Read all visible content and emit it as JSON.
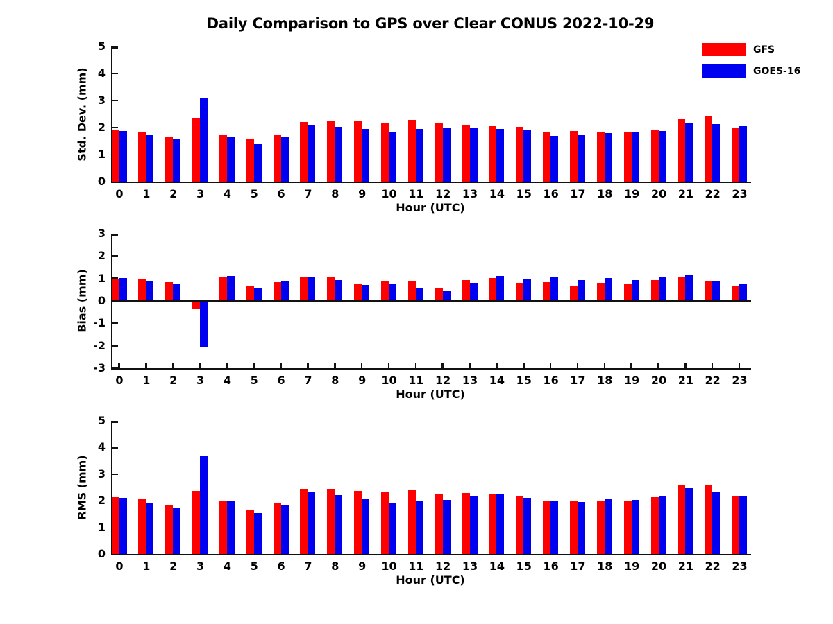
{
  "figure": {
    "title": "Daily Comparison to GPS over Clear CONUS 2022-10-29",
    "background": "#ffffff",
    "axis_color": "#111111"
  },
  "legend": {
    "position": "top-right",
    "items": [
      {
        "label": "GFS",
        "color": "#ff0000"
      },
      {
        "label": "GOES-16",
        "color": "#0000f0"
      }
    ]
  },
  "chart_data": [
    {
      "type": "bar",
      "title": "",
      "ylabel": "Std. Dev. (mm)",
      "xlabel": "Hour (UTC)",
      "ylim": [
        0,
        5
      ],
      "yticks": [
        0,
        1,
        2,
        3,
        4,
        5
      ],
      "grid": false,
      "zero_line": false,
      "x": [
        0,
        1,
        2,
        3,
        4,
        5,
        6,
        7,
        8,
        9,
        10,
        11,
        12,
        13,
        14,
        15,
        16,
        17,
        18,
        19,
        20,
        21,
        22,
        23
      ],
      "series": [
        {
          "name": "GFS",
          "color": "#ff0000",
          "values": [
            1.9,
            1.84,
            1.65,
            2.37,
            1.71,
            1.56,
            1.73,
            2.21,
            2.22,
            2.25,
            2.16,
            2.27,
            2.18,
            2.1,
            2.06,
            2.03,
            1.82,
            1.87,
            1.85,
            1.83,
            1.93,
            2.34,
            2.4,
            2.01
          ]
        },
        {
          "name": "GOES-16",
          "color": "#0000f0",
          "values": [
            1.86,
            1.71,
            1.56,
            3.1,
            1.66,
            1.4,
            1.66,
            2.08,
            2.03,
            1.95,
            1.84,
            1.94,
            2.0,
            1.98,
            1.96,
            1.9,
            1.68,
            1.73,
            1.79,
            1.84,
            1.88,
            2.19,
            2.12,
            2.04
          ]
        }
      ]
    },
    {
      "type": "bar",
      "title": "",
      "ylabel": "Bias (mm)",
      "xlabel": "Hour (UTC)",
      "ylim": [
        -3,
        3
      ],
      "yticks": [
        -3,
        -2,
        -1,
        0,
        1,
        2,
        3
      ],
      "grid": false,
      "zero_line": true,
      "x": [
        0,
        1,
        2,
        3,
        4,
        5,
        6,
        7,
        8,
        9,
        10,
        11,
        12,
        13,
        14,
        15,
        16,
        17,
        18,
        19,
        20,
        21,
        22,
        23
      ],
      "series": [
        {
          "name": "GFS",
          "color": "#ff0000",
          "values": [
            0.98,
            0.95,
            0.85,
            -0.33,
            1.08,
            0.65,
            0.85,
            1.08,
            1.07,
            0.77,
            0.89,
            0.88,
            0.6,
            0.93,
            1.02,
            0.8,
            0.83,
            0.66,
            0.79,
            0.78,
            0.93,
            1.07,
            0.9,
            0.69
          ]
        },
        {
          "name": "GOES-16",
          "color": "#0000f0",
          "values": [
            1.01,
            0.9,
            0.78,
            -2.05,
            1.11,
            0.6,
            0.87,
            1.05,
            0.94,
            0.7,
            0.73,
            0.6,
            0.42,
            0.81,
            1.12,
            0.96,
            1.08,
            0.94,
            1.02,
            0.93,
            1.09,
            1.17,
            0.9,
            0.76
          ]
        }
      ]
    },
    {
      "type": "bar",
      "title": "",
      "ylabel": "RMS (mm)",
      "xlabel": "Hour (UTC)",
      "ylim": [
        0,
        5
      ],
      "yticks": [
        0,
        1,
        2,
        3,
        4,
        5
      ],
      "grid": false,
      "zero_line": false,
      "x": [
        0,
        1,
        2,
        3,
        4,
        5,
        6,
        7,
        8,
        9,
        10,
        11,
        12,
        13,
        14,
        15,
        16,
        17,
        18,
        19,
        20,
        21,
        22,
        23
      ],
      "series": [
        {
          "name": "GFS",
          "color": "#ff0000",
          "values": [
            2.13,
            2.08,
            1.86,
            2.36,
            2.01,
            1.66,
            1.91,
            2.44,
            2.44,
            2.36,
            2.31,
            2.4,
            2.24,
            2.29,
            2.27,
            2.17,
            2.01,
            1.98,
            2.01,
            1.98,
            2.13,
            2.58,
            2.58,
            2.15
          ]
        },
        {
          "name": "GOES-16",
          "color": "#0000f0",
          "values": [
            2.11,
            1.93,
            1.72,
            3.7,
            1.98,
            1.53,
            1.84,
            2.35,
            2.22,
            2.06,
            1.93,
            2.0,
            2.03,
            2.15,
            2.24,
            2.12,
            1.99,
            1.96,
            2.06,
            2.03,
            2.17,
            2.47,
            2.32,
            2.18
          ]
        }
      ]
    }
  ]
}
